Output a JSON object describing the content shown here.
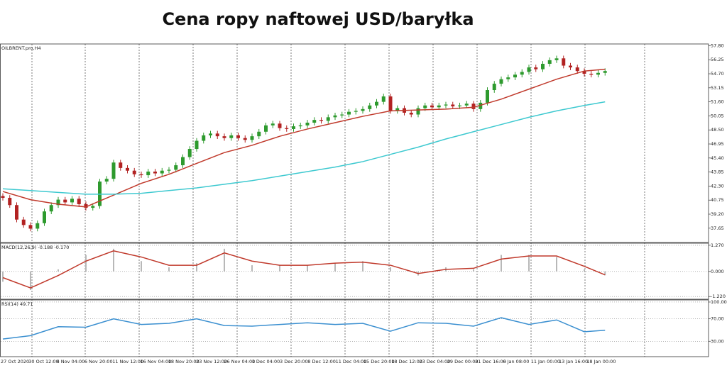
{
  "title": "Cena ropy naftowej USD/baryłka",
  "chart_data": [
    {
      "type": "candlestick",
      "label": "OILBRENT.pro,H4",
      "bull_color": "#2e9a2e",
      "bear_color": "#b22222",
      "open": [
        41.2,
        41.0,
        40.2,
        38.6,
        38.0,
        37.6,
        38.2,
        39.5,
        40.2,
        40.8,
        40.5,
        40.9,
        40.3,
        39.9,
        40.1,
        42.8,
        43.1,
        44.9,
        44.3,
        44.0,
        43.6,
        43.5,
        43.9,
        43.7,
        44.0,
        44.1,
        44.6,
        45.5,
        46.4,
        47.3,
        47.9,
        48.1,
        47.8,
        47.6,
        47.9,
        47.6,
        47.4,
        47.8,
        48.3,
        49.0,
        49.2,
        48.7,
        48.6,
        48.9,
        49.0,
        49.3,
        49.6,
        49.5,
        49.9,
        50.1,
        50.2,
        50.5,
        50.6,
        50.8,
        51.2,
        51.6,
        52.2,
        50.6,
        50.9,
        50.4,
        50.2,
        50.9,
        51.2,
        51.0,
        51.2,
        51.3,
        51.1,
        51.2,
        51.4,
        50.8,
        51.5,
        52.9,
        53.6,
        54.1,
        54.3,
        54.6,
        54.9,
        55.4,
        55.2,
        55.8,
        56.2,
        56.4,
        55.6,
        55.4,
        55.0,
        54.7,
        54.6,
        54.8
      ],
      "high": [
        41.5,
        41.3,
        40.5,
        38.9,
        38.3,
        38.5,
        39.8,
        40.5,
        41.1,
        41.1,
        41.2,
        41.2,
        40.6,
        40.4,
        43.1,
        43.4,
        45.2,
        45.2,
        44.6,
        44.3,
        43.9,
        44.2,
        44.2,
        44.3,
        44.4,
        44.9,
        45.8,
        46.7,
        47.6,
        48.2,
        48.4,
        48.4,
        48.1,
        48.2,
        48.2,
        47.9,
        48.1,
        48.6,
        49.3,
        49.5,
        49.5,
        49.0,
        49.2,
        49.3,
        49.6,
        49.9,
        49.9,
        50.2,
        50.4,
        50.5,
        50.8,
        50.9,
        51.1,
        51.5,
        51.9,
        52.5,
        52.5,
        51.2,
        51.2,
        50.7,
        51.2,
        51.5,
        51.5,
        51.5,
        51.6,
        51.6,
        51.5,
        51.7,
        51.7,
        51.8,
        53.2,
        53.9,
        54.4,
        54.6,
        54.9,
        55.2,
        55.7,
        55.7,
        56.1,
        56.5,
        56.7,
        56.7,
        55.9,
        55.7,
        55.3,
        55.0,
        55.1,
        55.3
      ],
      "low": [
        40.7,
        39.9,
        38.3,
        37.7,
        37.3,
        37.3,
        37.9,
        39.2,
        39.9,
        40.2,
        40.2,
        40.0,
        39.6,
        39.6,
        39.8,
        42.5,
        42.8,
        44.0,
        43.7,
        43.3,
        43.2,
        43.2,
        43.4,
        43.4,
        43.7,
        43.8,
        44.3,
        45.2,
        46.1,
        47.0,
        47.6,
        47.5,
        47.3,
        47.3,
        47.3,
        47.1,
        47.1,
        47.5,
        48.0,
        48.7,
        48.4,
        48.3,
        48.3,
        48.6,
        48.7,
        49.0,
        49.2,
        49.2,
        49.6,
        49.8,
        49.9,
        50.2,
        50.3,
        50.5,
        50.9,
        51.3,
        50.3,
        50.3,
        50.1,
        49.9,
        49.9,
        50.6,
        50.7,
        50.7,
        50.9,
        50.8,
        50.8,
        50.9,
        50.5,
        50.5,
        51.2,
        52.6,
        53.3,
        53.8,
        54.0,
        54.3,
        54.6,
        54.9,
        54.9,
        55.5,
        55.9,
        55.3,
        55.1,
        54.7,
        54.4,
        54.3,
        54.3,
        54.5
      ],
      "close": [
        41.0,
        40.2,
        38.6,
        38.0,
        37.6,
        38.2,
        39.5,
        40.2,
        40.8,
        40.5,
        40.9,
        40.3,
        39.9,
        40.1,
        42.8,
        43.1,
        44.9,
        44.3,
        44.0,
        43.6,
        43.5,
        43.9,
        43.7,
        44.0,
        44.1,
        44.6,
        45.5,
        46.4,
        47.3,
        47.9,
        48.1,
        47.8,
        47.6,
        47.9,
        47.6,
        47.4,
        47.8,
        48.3,
        49.0,
        49.2,
        48.7,
        48.6,
        48.9,
        49.0,
        49.3,
        49.6,
        49.5,
        49.9,
        50.1,
        50.2,
        50.5,
        50.6,
        50.8,
        51.2,
        51.6,
        52.2,
        50.6,
        50.9,
        50.4,
        50.2,
        50.9,
        51.2,
        51.0,
        51.2,
        51.3,
        51.1,
        51.2,
        51.4,
        50.8,
        51.5,
        52.9,
        53.6,
        54.1,
        54.3,
        54.6,
        54.9,
        55.4,
        55.2,
        55.8,
        56.2,
        56.4,
        55.6,
        55.4,
        55.0,
        54.7,
        54.6,
        54.8,
        55.0
      ],
      "series": [
        {
          "color": "#c0392b",
          "x": [
            0,
            4,
            8,
            12,
            16,
            20,
            24,
            28,
            32,
            36,
            40,
            44,
            48,
            52,
            56,
            60,
            64,
            68,
            72,
            76,
            80,
            84,
            87
          ],
          "values": [
            41.7,
            40.8,
            40.3,
            40.0,
            41.3,
            42.6,
            43.6,
            44.8,
            46.0,
            46.8,
            47.8,
            48.6,
            49.3,
            50.0,
            50.6,
            50.7,
            50.8,
            51.0,
            51.9,
            53.0,
            54.1,
            55.0,
            55.2
          ]
        },
        {
          "color": "#3ec9d0",
          "x": [
            0,
            4,
            8,
            12,
            16,
            20,
            24,
            28,
            32,
            36,
            40,
            44,
            48,
            52,
            56,
            60,
            64,
            68,
            72,
            76,
            80,
            84,
            87
          ],
          "values": [
            42.0,
            41.8,
            41.6,
            41.4,
            41.4,
            41.5,
            41.8,
            42.1,
            42.5,
            42.9,
            43.4,
            43.9,
            44.4,
            45.0,
            45.8,
            46.6,
            47.5,
            48.3,
            49.1,
            49.9,
            50.6,
            51.2,
            51.6
          ]
        }
      ],
      "ylim": [
        36.07,
        57.99
      ],
      "grid": false,
      "yticks": [
        {
          "value": 57.8,
          "label": "57.80"
        },
        {
          "value": 56.25,
          "label": "56.25"
        },
        {
          "value": 54.7,
          "label": "54.70"
        },
        {
          "value": 53.15,
          "label": "53.15"
        },
        {
          "value": 51.6,
          "label": "51.60"
        },
        {
          "value": 50.05,
          "label": "50.05"
        },
        {
          "value": 48.5,
          "label": "48.50"
        },
        {
          "value": 46.95,
          "label": "46.95"
        },
        {
          "value": 45.4,
          "label": "45.40"
        },
        {
          "value": 43.85,
          "label": "43.85"
        },
        {
          "value": 42.3,
          "label": "42.30"
        },
        {
          "value": 40.75,
          "label": "40.75"
        },
        {
          "value": 39.2,
          "label": "39.20"
        },
        {
          "value": 37.65,
          "label": "37.65"
        }
      ]
    },
    {
      "type": "macd",
      "label": "MACD(12,26,9) -0.188 -0.170",
      "x": [
        0,
        4,
        8,
        12,
        16,
        20,
        24,
        28,
        32,
        36,
        40,
        44,
        48,
        52,
        56,
        60,
        64,
        68,
        72,
        76,
        80,
        84,
        87
      ],
      "histogram_color": "#b8b8b8",
      "histogram": [
        -0.5,
        -0.9,
        0.1,
        0.8,
        1.1,
        0.5,
        0.2,
        0.4,
        1.1,
        0.3,
        0.3,
        0.3,
        0.4,
        0.5,
        0.2,
        -0.2,
        0.2,
        0.1,
        0.8,
        0.8,
        0.7,
        0.1,
        -0.188
      ],
      "line_color": "#c0392b",
      "line": [
        -0.3,
        -0.8,
        -0.2,
        0.5,
        1.0,
        0.7,
        0.3,
        0.3,
        0.9,
        0.5,
        0.3,
        0.3,
        0.4,
        0.45,
        0.3,
        -0.1,
        0.1,
        0.15,
        0.6,
        0.75,
        0.75,
        0.25,
        -0.17
      ],
      "ylim": [
        -1.35,
        1.37
      ],
      "grid": true,
      "yticks": [
        {
          "value": 1.27,
          "label": "1.270"
        },
        {
          "value": 0,
          "label": "0.000"
        },
        {
          "value": -1.22,
          "label": "-1.220"
        }
      ]
    },
    {
      "type": "line",
      "label": "RSI(14) 49.71",
      "color": "#3a8fd0",
      "x": [
        0,
        4,
        8,
        12,
        16,
        20,
        24,
        28,
        32,
        36,
        40,
        44,
        48,
        52,
        56,
        60,
        64,
        68,
        72,
        76,
        80,
        84,
        87
      ],
      "values": [
        34,
        40,
        56,
        55,
        70,
        60,
        62,
        70,
        58,
        57,
        60,
        63,
        60,
        62,
        48,
        63,
        62,
        57,
        72,
        60,
        68,
        47,
        49.71
      ],
      "ylim": [
        2.5,
        103.75
      ],
      "grid": true,
      "yticks": [
        {
          "value": 100,
          "label": "100.00"
        },
        {
          "value": 70,
          "label": "70.00"
        },
        {
          "value": 30,
          "label": "30.00"
        }
      ],
      "x_axis_labels": [
        "27 Oct 2020",
        "30 Oct 12:00",
        "4 Nov 04:00",
        "6 Nov 20:00",
        "11 Nov 12:00",
        "16 Nov 04:00",
        "18 Nov 20:00",
        "23 Nov 12:00",
        "26 Nov 04:00",
        "1 Dec 04:00",
        "3 Dec 20:00",
        "8 Dec 12:00",
        "11 Dec 04:00",
        "15 Dec 20:00",
        "18 Dec 12:00",
        "23 Dec 04:00",
        "29 Dec 00:00",
        "31 Dec 16:00",
        "6 Jan 08:00",
        "11 Jan 00:00",
        "13 Jan 16:00",
        "18 Jan 00:00"
      ]
    }
  ]
}
